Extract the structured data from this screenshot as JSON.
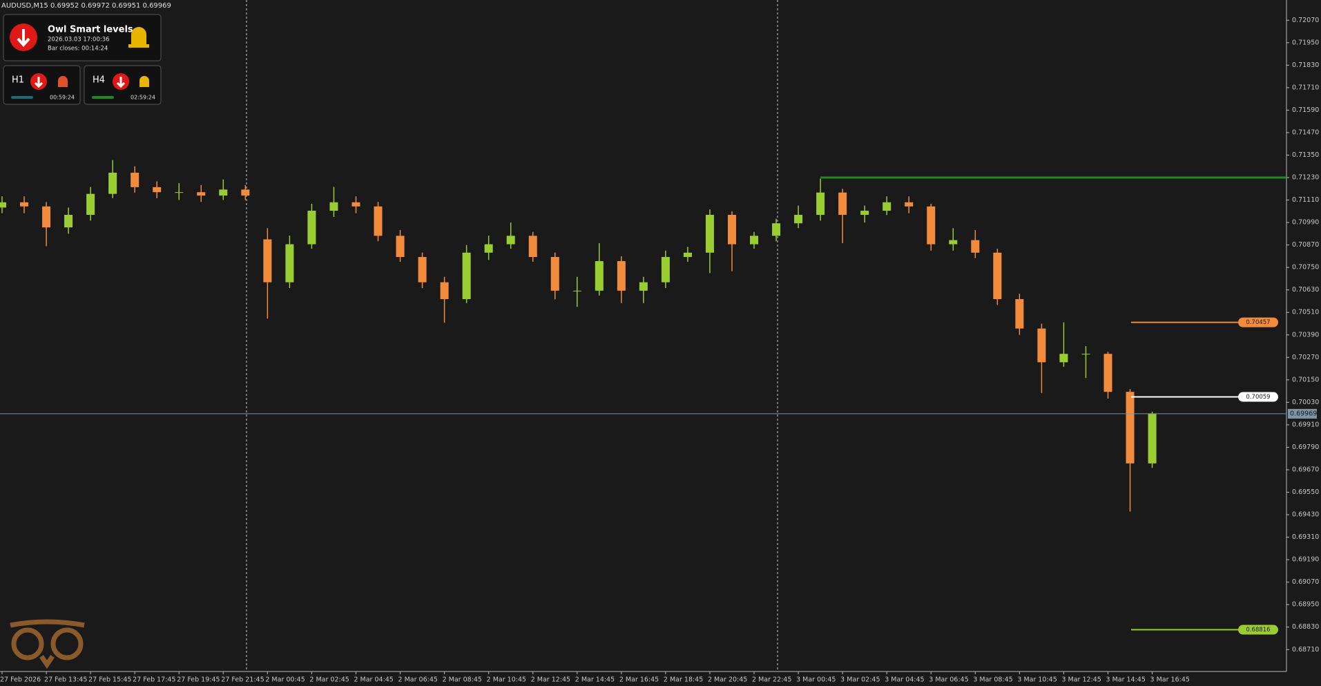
{
  "header": "AUDUSD,M15  0.69952 0.69972 0.69951 0.69969",
  "widget": {
    "title": "Owl Smart levels",
    "time": "2026.03.03 17:00:36",
    "bar_closes": "Bar closes: 00:14:24",
    "h1": {
      "label": "H1",
      "timer": "00:59:24"
    },
    "h4": {
      "label": "H4",
      "timer": "02:59:24"
    }
  },
  "chart_data": {
    "type": "candlestick",
    "up_color": "#9acd32",
    "down_color": "#f28c3c",
    "categories": [
      "27 Feb 2026",
      null,
      "27 Feb 13:45",
      null,
      "27 Feb 15:45",
      null,
      "27 Feb 17:45",
      null,
      "27 Feb 19:45",
      null,
      "27 Feb 21:45",
      null,
      "2 Mar 00:45",
      null,
      "2 Mar 02:45",
      null,
      "2 Mar 04:45",
      null,
      "2 Mar 06:45",
      null,
      "2 Mar 08:45",
      null,
      "2 Mar 10:45",
      null,
      "2 Mar 12:45",
      null,
      "2 Mar 14:45",
      null,
      "2 Mar 16:45",
      null,
      "2 Mar 18:45",
      null,
      "2 Mar 20:45",
      null,
      "2 Mar 22:45",
      null,
      "3 Mar 00:45",
      null,
      "3 Mar 02:45",
      null,
      "3 Mar 04:45",
      null,
      "3 Mar 06:45",
      null,
      "3 Mar 08:45",
      null,
      "3 Mar 10:45",
      null,
      "3 Mar 12:45",
      null,
      "3 Mar 14:45",
      null,
      "3 Mar 16:45"
    ],
    "open": [
      0.7107,
      0.71098,
      0.71076,
      0.70964,
      0.71031,
      0.71143,
      0.71256,
      0.71179,
      0.71152,
      0.71152,
      0.71134,
      0.71166,
      0.709,
      0.70671,
      0.70874,
      0.71053,
      0.71098,
      0.71076,
      0.70919,
      0.70806,
      0.70671,
      0.70581,
      0.70829,
      0.70874,
      0.70919,
      0.70806,
      0.70626,
      0.70626,
      0.70784,
      0.70626,
      0.70671,
      0.70806,
      0.70829,
      0.71031,
      0.70874,
      0.70919,
      0.70986,
      0.71031,
      0.7115,
      0.71031,
      0.71053,
      0.71098,
      0.71076,
      0.70874,
      0.70896,
      0.70829,
      0.70581,
      0.70424,
      0.70244,
      0.70289,
      0.70289,
      0.70086,
      0.69704
    ],
    "high": [
      0.7113,
      0.7113,
      0.711,
      0.7107,
      0.7118,
      0.71323,
      0.7129,
      0.7121,
      0.712,
      0.7119,
      0.7122,
      0.7119,
      0.7096,
      0.7092,
      0.7109,
      0.7118,
      0.7113,
      0.711,
      0.7095,
      0.7083,
      0.707,
      0.7087,
      0.7092,
      0.7099,
      0.7094,
      0.7083,
      0.707,
      0.7088,
      0.7081,
      0.707,
      0.7084,
      0.7086,
      0.7106,
      0.7105,
      0.7094,
      0.7101,
      0.7108,
      0.71224,
      0.7117,
      0.7108,
      0.7113,
      0.7113,
      0.7109,
      0.7096,
      0.7095,
      0.7085,
      0.7061,
      0.7045,
      0.70457,
      0.7033,
      0.703,
      0.701,
      0.6998
    ],
    "low": [
      0.7104,
      0.7104,
      0.70864,
      0.7093,
      0.71,
      0.7112,
      0.7115,
      0.7112,
      0.7111,
      0.711,
      0.7111,
      0.7111,
      0.70477,
      0.7064,
      0.7085,
      0.7102,
      0.7104,
      0.7089,
      0.7078,
      0.7064,
      0.70455,
      0.7056,
      0.7079,
      0.7085,
      0.7078,
      0.7058,
      0.7054,
      0.706,
      0.7056,
      0.7056,
      0.7064,
      0.7078,
      0.7072,
      0.7073,
      0.7085,
      0.7089,
      0.7096,
      0.71,
      0.7088,
      0.7099,
      0.7103,
      0.7104,
      0.7084,
      0.7084,
      0.708,
      0.7055,
      0.7039,
      0.7008,
      0.7022,
      0.7016,
      0.7005,
      0.69447,
      0.6968
    ],
    "close": [
      0.71098,
      0.71076,
      0.70964,
      0.71031,
      0.71143,
      0.71256,
      0.71179,
      0.71152,
      0.71152,
      0.71134,
      0.71166,
      0.71134,
      0.70671,
      0.70874,
      0.71053,
      0.71098,
      0.71076,
      0.70919,
      0.70806,
      0.70671,
      0.70581,
      0.70829,
      0.70874,
      0.70919,
      0.70806,
      0.70626,
      0.70626,
      0.70784,
      0.70626,
      0.70671,
      0.70806,
      0.70829,
      0.71031,
      0.70874,
      0.70919,
      0.70986,
      0.71031,
      0.7115,
      0.71031,
      0.71053,
      0.71098,
      0.71076,
      0.70874,
      0.70896,
      0.70829,
      0.70581,
      0.70424,
      0.70244,
      0.70289,
      0.70289,
      0.70086,
      0.69704,
      0.69969
    ],
    "ylim": [
      0.68593,
      0.72178
    ],
    "yticks": [
      {
        "value": 0.6871,
        "label": "0.68710"
      },
      {
        "value": 0.6883,
        "label": "0.68830"
      },
      {
        "value": 0.6895,
        "label": "0.68950"
      },
      {
        "value": 0.6907,
        "label": "0.69070"
      },
      {
        "value": 0.6919,
        "label": "0.69190"
      },
      {
        "value": 0.6931,
        "label": "0.69310"
      },
      {
        "value": 0.6943,
        "label": "0.69430"
      },
      {
        "value": 0.6955,
        "label": "0.69550"
      },
      {
        "value": 0.6967,
        "label": "0.69670"
      },
      {
        "value": 0.6979,
        "label": "0.69790"
      },
      {
        "value": 0.6991,
        "label": "0.69910"
      },
      {
        "value": 0.7003,
        "label": "0.70030"
      },
      {
        "value": 0.7015,
        "label": "0.70150"
      },
      {
        "value": 0.7027,
        "label": "0.70270"
      },
      {
        "value": 0.7039,
        "label": "0.70390"
      },
      {
        "value": 0.7051,
        "label": "0.70510"
      },
      {
        "value": 0.7063,
        "label": "0.70630"
      },
      {
        "value": 0.7075,
        "label": "0.70750"
      },
      {
        "value": 0.7087,
        "label": "0.70870"
      },
      {
        "value": 0.7099,
        "label": "0.70990"
      },
      {
        "value": 0.7111,
        "label": "0.71110"
      },
      {
        "value": 0.7123,
        "label": "0.71230"
      },
      {
        "value": 0.7135,
        "label": "0.71350"
      },
      {
        "value": 0.7147,
        "label": "0.71470"
      },
      {
        "value": 0.7159,
        "label": "0.71590"
      },
      {
        "value": 0.7171,
        "label": "0.71710"
      },
      {
        "value": 0.7183,
        "label": "0.71830"
      },
      {
        "value": 0.7195,
        "label": "0.71950"
      },
      {
        "value": 0.7207,
        "label": "0.72070"
      }
    ],
    "grid": false,
    "resistance": {
      "value": 0.7123,
      "color": "#1e8a1e"
    },
    "levels": [
      {
        "value": 0.70457,
        "color": "#f28c3c"
      },
      {
        "value": 0.70059,
        "color": "#ffffff"
      },
      {
        "value": 0.68816,
        "color": "#9acd32"
      }
    ]
  }
}
